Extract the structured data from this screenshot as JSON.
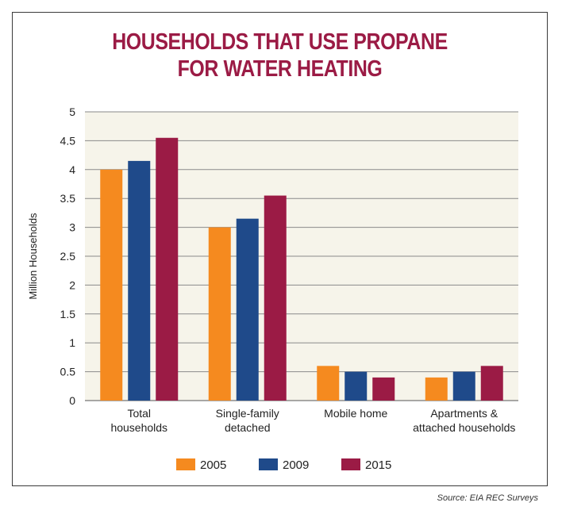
{
  "chart_data": {
    "type": "bar",
    "title_lines": [
      "HOUSEHOLDS THAT USE PROPANE",
      "FOR WATER HEATING"
    ],
    "ylabel": "Million Households",
    "ylim": [
      0,
      5
    ],
    "yticks": [
      "0",
      "0.5",
      "1",
      "1.5",
      "2",
      "2.5",
      "3",
      "3.5",
      "4",
      "4.5",
      "5"
    ],
    "categories": [
      [
        "Total",
        "households"
      ],
      [
        "Single-family",
        "detached"
      ],
      [
        "Mobile home"
      ],
      [
        "Apartments &",
        "attached households"
      ]
    ],
    "series": [
      {
        "name": "2005",
        "color": "#f58a1f",
        "values": [
          4.0,
          3.0,
          0.6,
          0.4
        ]
      },
      {
        "name": "2009",
        "color": "#1f4a8a",
        "values": [
          4.15,
          3.15,
          0.5,
          0.5
        ]
      },
      {
        "name": "2015",
        "color": "#9b1b45",
        "values": [
          4.55,
          3.55,
          0.4,
          0.6
        ]
      }
    ],
    "legend_position": "bottom",
    "grid": true,
    "plot_background": "#f6f4ea"
  },
  "source": "Source: EIA REC Surveys"
}
